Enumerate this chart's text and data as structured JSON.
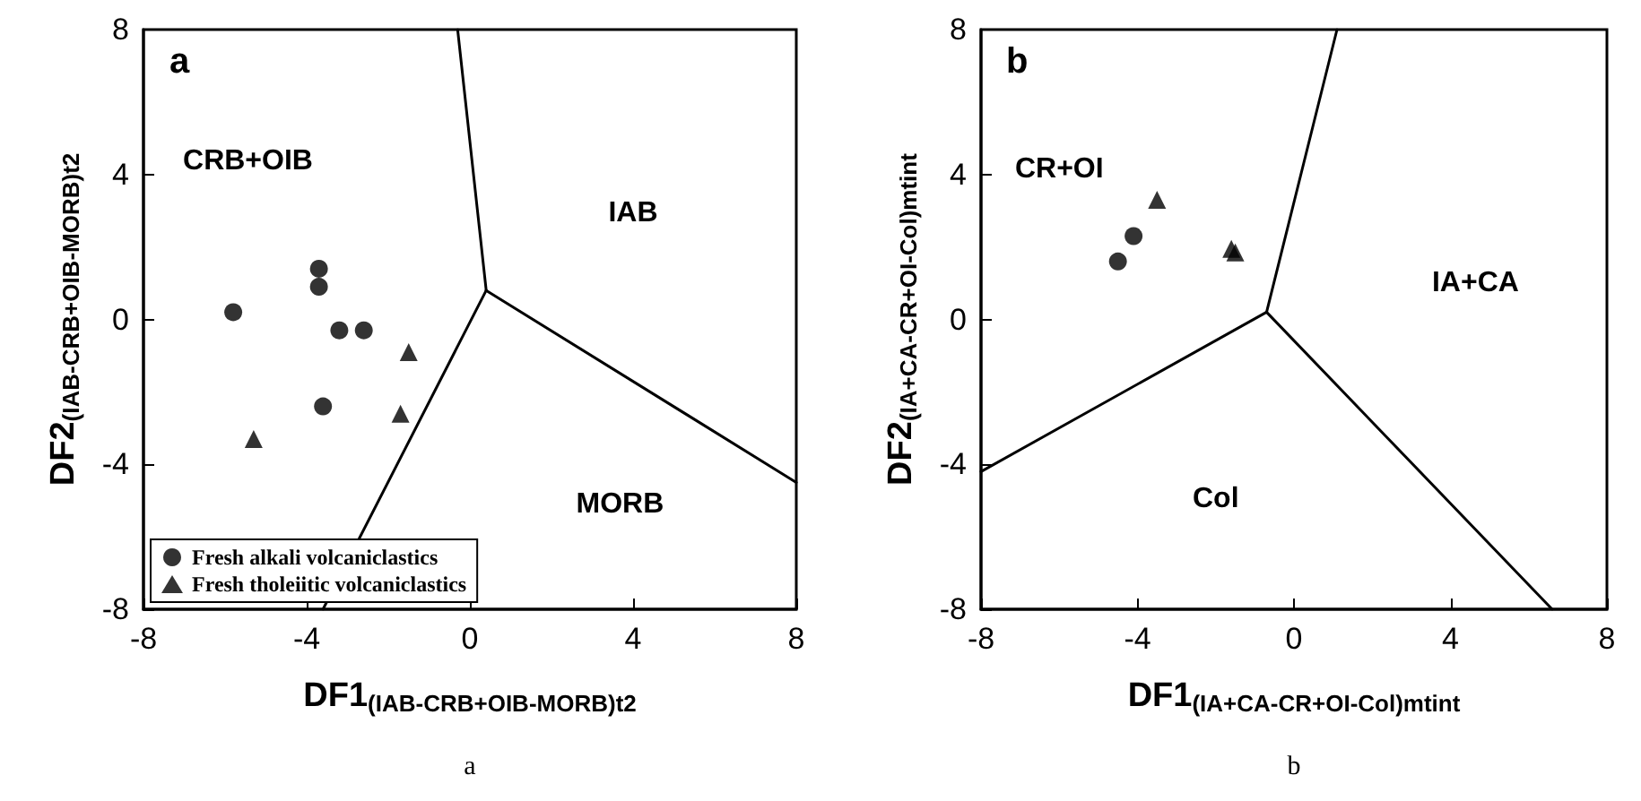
{
  "chart_data": [
    {
      "type": "scatter",
      "xlabel": "DF1$_{(IAB-CRB+OIB-MORB)t2}$",
      "ylabel": "DF2$_{(IAB-CRB+OIB-MORB)t2}$",
      "xlim": [
        -8,
        8
      ],
      "ylim": [
        -8,
        8
      ],
      "xticks": [
        -8,
        -4,
        0,
        4,
        8
      ],
      "yticks": [
        -8,
        -4,
        0,
        4,
        8
      ],
      "grid": false,
      "legend": "bottom left",
      "series": [
        {
          "name": "Fresh alkali volcaniclastics",
          "color": "#000000",
          "marker": "circle",
          "x": [
            -3.7,
            -3.7,
            -5.8,
            -3.2,
            -2.6,
            -3.6
          ],
          "values": [
            1.4,
            0.9,
            0.2,
            -0.3,
            -0.3,
            -2.4
          ]
        },
        {
          "name": "Fresh tholeiitic volcaniclastics",
          "color": "#000000",
          "marker": "triangle",
          "x": [
            -1.5,
            -1.7,
            -5.3
          ],
          "values": [
            -0.9,
            -2.6,
            -3.3
          ]
        },
        {
          "type": "line",
          "color": "#000000",
          "marker": "none",
          "line_style": "solid",
          "x": [
            -0.3,
            0.4
          ],
          "values": [
            8,
            0.8
          ]
        },
        {
          "type": "line",
          "color": "#000000",
          "marker": "none",
          "line_style": "solid",
          "x": [
            0.4,
            8
          ],
          "values": [
            0.8,
            -4.5
          ]
        },
        {
          "type": "line",
          "color": "#000000",
          "marker": "none",
          "line_style": "solid",
          "x": [
            0.4,
            -3.6
          ],
          "values": [
            0.8,
            -8
          ]
        }
      ],
      "annotations": [
        "a",
        "CRB+OIB",
        "IAB",
        "MORB",
        "a"
      ]
    },
    {
      "type": "scatter",
      "xlabel": "DF1$_{(IA+CA-CR+OI-Col)mtint}$",
      "ylabel": "DF2$_{(IA+CA-CR+OI-Col)mtint}$",
      "xlim": [
        -8,
        8
      ],
      "ylim": [
        -8,
        8
      ],
      "xticks": [
        -8,
        -4,
        0,
        4,
        8
      ],
      "yticks": [
        -8,
        -4,
        0,
        4,
        8
      ],
      "grid": false,
      "series": [
        {
          "color": "#000000",
          "marker": "circle",
          "x": [
            -4.5,
            -4.1
          ],
          "values": [
            1.6,
            2.3
          ]
        },
        {
          "color": "#000000",
          "marker": "triangle",
          "x": [
            -3.5,
            -1.6,
            -1.5
          ],
          "values": [
            3.3,
            1.95,
            1.85
          ]
        },
        {
          "type": "line",
          "color": "#000000",
          "marker": "none",
          "line_style": "solid",
          "x": [
            -8,
            -0.7
          ],
          "values": [
            -4.2,
            0.2
          ]
        },
        {
          "type": "line",
          "color": "#000000",
          "marker": "none",
          "line_style": "solid",
          "x": [
            -0.7,
            1.1
          ],
          "values": [
            0.2,
            8
          ]
        },
        {
          "type": "line",
          "color": "#000000",
          "marker": "none",
          "line_style": "solid",
          "x": [
            -0.7,
            6.6
          ],
          "values": [
            0.2,
            -8
          ]
        }
      ],
      "annotations": [
        "b",
        "CR+OI",
        "IA+CA",
        "Col",
        "b"
      ]
    }
  ]
}
